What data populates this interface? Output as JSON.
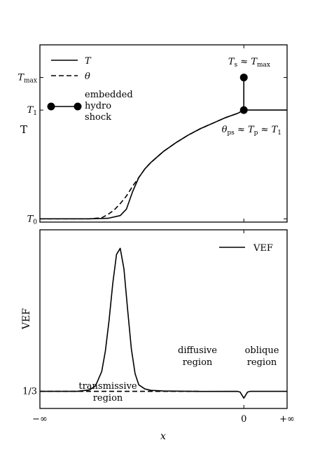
{
  "chart_data": [
    {
      "type": "line",
      "ylabel": "T",
      "xlabel": "",
      "xlim": [
        -1,
        1
      ],
      "ylim": [
        -0.03,
        1.6
      ],
      "xticks": [
        -1,
        0.65,
        1
      ],
      "yticks": [
        {
          "value": 0,
          "label": "T",
          "sub": "0"
        },
        {
          "value": 1,
          "label": "T",
          "sub": "1"
        },
        {
          "value": 1.3,
          "label": "T",
          "sub": "max"
        }
      ],
      "legend": {
        "placement": "top-left",
        "entries": [
          {
            "label": "T",
            "style": "solid"
          },
          {
            "label": "θ",
            "style": "dashed"
          },
          {
            "label_lines": [
              "embedded",
              "hydro",
              "shock"
            ],
            "style": "dot-line"
          }
        ]
      },
      "annotations": [
        {
          "parts": [
            {
              "t": "T",
              "i": true
            },
            {
              "t": "s",
              "sub": true
            },
            {
              "t": " ≈ "
            },
            {
              "t": "T",
              "i": true
            },
            {
              "t": "max",
              "sub": true
            }
          ],
          "anchor": "above-shock"
        },
        {
          "parts": [
            {
              "t": "θ",
              "i": true
            },
            {
              "t": "ps",
              "sub": true
            },
            {
              "t": " ≈ "
            },
            {
              "t": "T",
              "i": true
            },
            {
              "t": "p",
              "sub": true
            },
            {
              "t": " ≈ "
            },
            {
              "t": "T",
              "i": true
            },
            {
              "t": "1",
              "sub": true
            }
          ],
          "anchor": "below-shock"
        }
      ],
      "series": [
        {
          "style": "solid",
          "x": [
            -1,
            -0.6,
            -0.45,
            -0.35,
            -0.3,
            -0.25,
            -0.2,
            -0.15,
            -0.1,
            0,
            0.1,
            0.2,
            0.3,
            0.4,
            0.5,
            0.6,
            0.65
          ],
          "y": [
            0,
            0,
            0.005,
            0.03,
            0.09,
            0.25,
            0.38,
            0.46,
            0.52,
            0.62,
            0.7,
            0.77,
            0.83,
            0.88,
            0.93,
            0.97,
            1.0
          ]
        },
        {
          "style": "dashed",
          "x": [
            -1,
            -0.6,
            -0.5,
            -0.45,
            -0.4,
            -0.35,
            -0.3,
            -0.25,
            -0.2,
            -0.15,
            -0.1,
            0,
            0.1,
            0.2,
            0.3,
            0.4,
            0.5,
            0.6,
            0.65
          ],
          "y": [
            0,
            0,
            0.01,
            0.04,
            0.08,
            0.14,
            0.21,
            0.3,
            0.38,
            0.46,
            0.52,
            0.62,
            0.7,
            0.77,
            0.83,
            0.88,
            0.93,
            0.97,
            1.0
          ]
        },
        {
          "style": "solid",
          "x": [
            0.65,
            1
          ],
          "y": [
            1.0,
            1.0
          ]
        },
        {
          "style": "dot-line",
          "x": [
            0.65,
            0.65
          ],
          "y": [
            1.0,
            1.3
          ]
        }
      ]
    },
    {
      "type": "line",
      "ylabel": "VEF",
      "xlabel": "x",
      "xlim": [
        -1,
        1
      ],
      "ylim": [
        0.25,
        1.12
      ],
      "xticks": [
        {
          "value": -1,
          "label": "−∞"
        },
        {
          "value": 0.65,
          "label": "0"
        },
        {
          "value": 1,
          "label": "+∞"
        }
      ],
      "yticks": [
        {
          "value": 0.3333,
          "label": "1/3"
        }
      ],
      "legend": {
        "placement": "top-right",
        "entries": [
          {
            "label": "VEF",
            "style": "solid"
          }
        ]
      },
      "annotations": [
        {
          "lines": [
            "transmissive",
            "region"
          ],
          "region": "transmissive"
        },
        {
          "lines": [
            "diffusive",
            "region"
          ],
          "region": "diffusive"
        },
        {
          "lines": [
            "oblique",
            "region"
          ],
          "region": "oblique"
        }
      ],
      "series": [
        {
          "style": "solid",
          "x": [
            -1,
            -0.7,
            -0.6,
            -0.55,
            -0.5,
            -0.47,
            -0.44,
            -0.41,
            -0.38,
            -0.35,
            -0.32,
            -0.29,
            -0.26,
            -0.23,
            -0.2,
            -0.15,
            -0.1,
            0,
            0.3,
            0.6,
            0.62,
            0.64,
            0.65,
            0.66,
            0.68,
            0.7,
            1
          ],
          "y": [
            0.3333,
            0.3333,
            0.34,
            0.36,
            0.43,
            0.53,
            0.68,
            0.86,
            1.0,
            1.03,
            0.93,
            0.73,
            0.54,
            0.42,
            0.365,
            0.345,
            0.338,
            0.335,
            0.333,
            0.3333,
            0.33,
            0.31,
            0.3,
            0.31,
            0.33,
            0.3333,
            0.3333
          ]
        },
        {
          "style": "dashed",
          "x": [
            -1,
            0.3
          ],
          "y": [
            0.3333,
            0.3333
          ]
        }
      ]
    }
  ]
}
